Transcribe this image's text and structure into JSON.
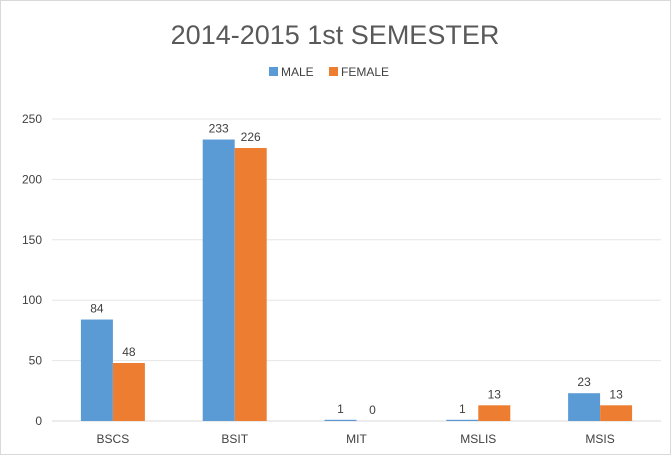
{
  "chart_data": {
    "type": "bar",
    "title": "2014-2015 1st SEMESTER",
    "categories": [
      "BSCS",
      "BSIT",
      "MIT",
      "MSLIS",
      "MSIS"
    ],
    "series": [
      {
        "name": "MALE",
        "values": [
          84,
          233,
          1,
          1,
          23
        ],
        "color": "#5b9bd5"
      },
      {
        "name": "FEMALE",
        "values": [
          48,
          226,
          0,
          13,
          13
        ],
        "color": "#ed7d31"
      }
    ],
    "xlabel": "",
    "ylabel": "",
    "ylim": [
      0,
      250
    ],
    "yticks": [
      0,
      50,
      100,
      150,
      200,
      250
    ],
    "grid": true,
    "legend_position": "top-center",
    "data_labels": true
  }
}
